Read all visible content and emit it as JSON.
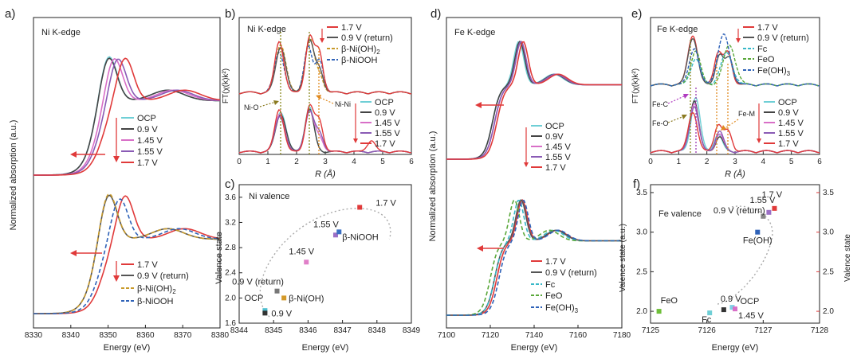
{
  "chart_data": [
    {
      "panel": "a",
      "type": "line",
      "label": "Ni K-edge",
      "xlabel": "Energy (eV)",
      "ylabel": "Normalized absorption (a.u.)",
      "xlim": [
        8330,
        8380
      ],
      "x_ticks": [
        8330,
        8340,
        8350,
        8360,
        8370,
        8380
      ],
      "top_legend": [
        "OCP",
        "0.9 V",
        "1.45 V",
        "1.55 V",
        "1.7 V"
      ],
      "bottom_legend": [
        "1.7 V",
        "0.9 V (return)",
        "β-Ni(OH)",
        "β-NiOOH"
      ],
      "series_top": [
        {
          "name": "OCP",
          "color": "#6fcfd6",
          "edge": 8346,
          "peak": 8350,
          "height": 1.05
        },
        {
          "name": "0.9 V",
          "color": "#444444",
          "edge": 8346,
          "peak": 8350,
          "height": 1.02
        },
        {
          "name": "1.45 V",
          "color": "#d86fc7",
          "edge": 8347,
          "peak": 8351.5,
          "height": 0.98
        },
        {
          "name": "1.55 V",
          "color": "#8a5bb5",
          "edge": 8347.5,
          "peak": 8352.5,
          "height": 0.95
        },
        {
          "name": "1.7 V",
          "color": "#e03a3a",
          "edge": 8348.5,
          "peak": 8354.5,
          "height": 0.93
        }
      ],
      "series_bottom": [
        {
          "name": "1.7 V",
          "color": "#e03a3a",
          "edge": 8348.5,
          "peak": 8354.5,
          "height": 0.95
        },
        {
          "name": "0.9 V (return)",
          "color": "#555555",
          "edge": 8346,
          "peak": 8350,
          "height": 1.05
        },
        {
          "name": "β-Ni(OH)2",
          "color": "#c89a2a",
          "edge": 8346,
          "peak": 8350,
          "height": 1.08
        },
        {
          "name": "β-NiOOH",
          "color": "#2f62b8",
          "edge": 8347.5,
          "peak": 8353,
          "height": 0.9
        }
      ]
    },
    {
      "panel": "b",
      "type": "line",
      "label": "Ni K-edge",
      "xlabel": "R (Å)",
      "ylabel": "FT(χ(k)k²)",
      "xlim": [
        0,
        6
      ],
      "x_ticks": [
        0,
        1,
        2,
        3,
        4,
        5,
        6
      ],
      "annotations": [
        "Ni-O",
        "Ni-Ni"
      ],
      "legend_top": [
        "1.7 V",
        "0.9 V (return)",
        "β-Ni(OH)",
        "β-NiOOH"
      ],
      "legend_bottom": [
        "OCP",
        "0.9 V",
        "1.45 V",
        "1.55 V",
        "1.7 V"
      ],
      "peaks_R": [
        1.45,
        2.45,
        2.8
      ]
    },
    {
      "panel": "c",
      "type": "scatter",
      "title": "Ni valence",
      "xlabel": "Energy (eV)",
      "ylabel": "Valence state",
      "xlim": [
        8344,
        8349
      ],
      "ylim": [
        1.6,
        3.8
      ],
      "x_ticks": [
        8344,
        8345,
        8346,
        8347,
        8348,
        8349
      ],
      "y_ticks": [
        1.6,
        2.0,
        2.4,
        2.8,
        3.2,
        3.6
      ],
      "points": [
        {
          "label": "OCP",
          "x": 8344.75,
          "y": 1.8,
          "color": "#4fbfd0"
        },
        {
          "label": "0.9 V",
          "x": 8344.75,
          "y": 1.76,
          "color": "#333333"
        },
        {
          "label": "β-Ni(OH)",
          "x": 8345.3,
          "y": 2.0,
          "color": "#d49a2a"
        },
        {
          "label": "0.9 V (return)",
          "x": 8345.1,
          "y": 2.11,
          "color": "#777777"
        },
        {
          "label": "1.45 V",
          "x": 8345.95,
          "y": 2.57,
          "color": "#e07fc8"
        },
        {
          "label": "1.55 V",
          "x": 8346.8,
          "y": 3.0,
          "color": "#9b6fc6"
        },
        {
          "label": "β-NiOOH",
          "x": 8346.9,
          "y": 3.05,
          "color": "#3a6fc2"
        },
        {
          "label": "1.7 V",
          "x": 8347.5,
          "y": 3.44,
          "color": "#e03a3a"
        }
      ]
    },
    {
      "panel": "d",
      "type": "line",
      "label": "Fe K-edge",
      "xlabel": "Energy (eV)",
      "ylabel": "Normalized absorption (a.u.)",
      "xlim": [
        7100,
        7180
      ],
      "x_ticks": [
        7100,
        7120,
        7140,
        7160,
        7180
      ],
      "top_legend": [
        "OCP",
        "0.9V",
        "1.45 V",
        "1.55 V",
        "1.7 V"
      ],
      "bottom_legend": [
        "1.7 V",
        "0.9 V (return)",
        "Fc",
        "FeO",
        "Fe(OH)"
      ]
    },
    {
      "panel": "e",
      "type": "line",
      "label": "Fe K-edge",
      "xlabel": "R (Å)",
      "ylabel": "FT(χ(k)k²)",
      "xlim": [
        0,
        6
      ],
      "x_ticks": [
        0,
        1,
        2,
        3,
        4,
        5,
        6
      ],
      "annotations": [
        "Fe-C",
        "Fe-O",
        "Fe-M"
      ],
      "legend_top": [
        "1.7 V",
        "0.9 V (return)",
        "Fc",
        "FeO",
        "Fe(OH)"
      ],
      "legend_bottom": [
        "OCP",
        "0.9 V",
        "1.45 V",
        "1.55 V",
        "1.7 V"
      ]
    },
    {
      "panel": "f",
      "type": "scatter",
      "title": "Fe valence",
      "xlabel": "Energy (eV)",
      "ylabel": "Valence state (a.u.)",
      "ylabel_right": "Valence state",
      "xlim": [
        7125,
        7128
      ],
      "ylim": [
        1.85,
        3.6
      ],
      "x_ticks": [
        7125,
        7126,
        7127,
        7128
      ],
      "y_ticks": [
        2.0,
        2.5,
        3.0,
        3.5
      ],
      "points": [
        {
          "label": "FeO",
          "x": 7125.15,
          "y": 2.0,
          "color": "#6fbf3a"
        },
        {
          "label": "Fc",
          "x": 7126.05,
          "y": 1.98,
          "color": "#6fcfd6"
        },
        {
          "label": "0.9 V",
          "x": 7126.3,
          "y": 2.02,
          "color": "#333333"
        },
        {
          "label": "OCP",
          "x": 7126.45,
          "y": 2.05,
          "color": "#7fd0e6"
        },
        {
          "label": "1.45 V",
          "x": 7126.5,
          "y": 2.03,
          "color": "#d86fc7"
        },
        {
          "label": "Fe(OH)",
          "x": 7126.9,
          "y": 3.0,
          "color": "#2f62b8"
        },
        {
          "label": "0.9 V (return)",
          "x": 7127.0,
          "y": 3.2,
          "color": "#888888"
        },
        {
          "label": "1.55 V",
          "x": 7127.1,
          "y": 3.25,
          "color": "#9b6fc6"
        },
        {
          "label": "1.7 V",
          "x": 7127.2,
          "y": 3.3,
          "color": "#e03a3a"
        }
      ]
    }
  ],
  "labels": {
    "a": "a)",
    "b": "b)",
    "c": "c)",
    "d": "d)",
    "e": "e)",
    "f": "f)",
    "sub2": "2",
    "sub3": "3"
  },
  "colors": {
    "ocp": "#6fcfd6",
    "v09": "#444444",
    "v145": "#d86fc7",
    "v155": "#8a5bb5",
    "v17": "#e03a3a",
    "nioh": "#c89a2a",
    "niooh": "#2f62b8",
    "fc": "#38b8c8",
    "feo": "#5aa83a",
    "feoh": "#2f62b8",
    "arrow": "#e03a3a"
  }
}
